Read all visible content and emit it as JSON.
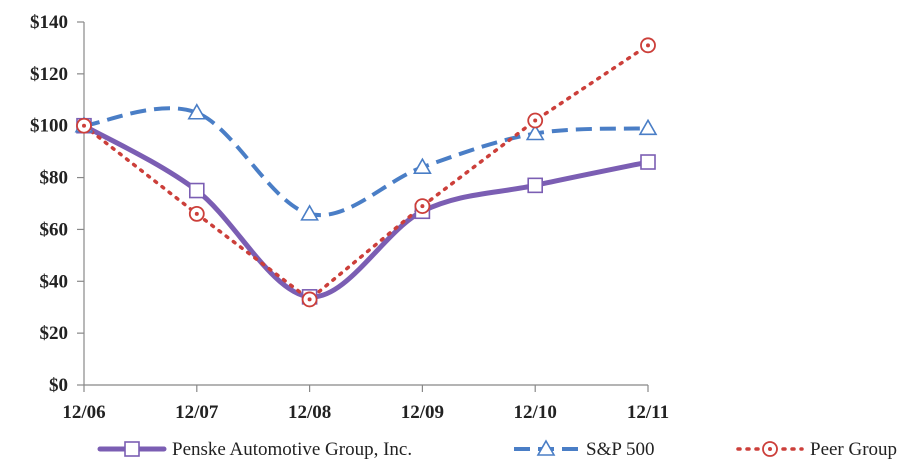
{
  "chart_data": {
    "type": "line",
    "categories": [
      "12/06",
      "12/07",
      "12/08",
      "12/09",
      "12/10",
      "12/11"
    ],
    "y_tick_labels": [
      "$0",
      "$20",
      "$40",
      "$60",
      "$80",
      "$100",
      "$120",
      "$140"
    ],
    "ylim": [
      0,
      140
    ],
    "y_step": 20,
    "grid": false,
    "legend_position": "bottom",
    "title": "",
    "xlabel": "",
    "ylabel": "",
    "series": [
      {
        "name": "Penske Automotive Group, Inc.",
        "values": [
          100,
          75,
          34,
          67,
          77,
          86
        ],
        "color": "#7b5eb3",
        "line_style": "solid",
        "marker": "square",
        "smooth": true
      },
      {
        "name": "S&P 500",
        "values": [
          100,
          105,
          66,
          84,
          97,
          99
        ],
        "color": "#4a7ec6",
        "line_style": "dashed",
        "marker": "triangle",
        "smooth": true
      },
      {
        "name": "Peer Group",
        "values": [
          100,
          66,
          33,
          69,
          102,
          131
        ],
        "color": "#cc3f3a",
        "line_style": "dotted",
        "marker": "circle",
        "smooth": false
      }
    ]
  }
}
